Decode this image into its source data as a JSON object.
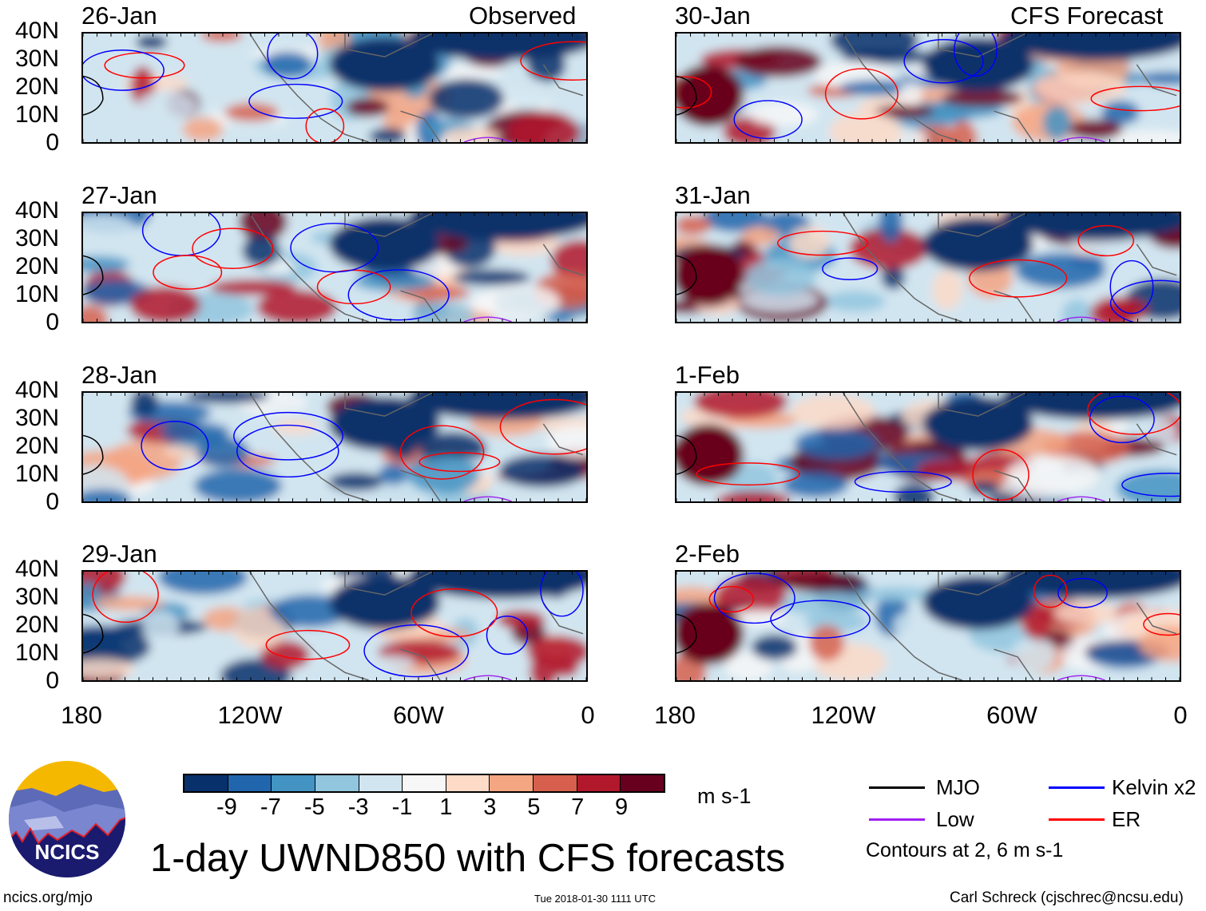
{
  "header": {
    "observed_label": "Observed",
    "forecast_label": "CFS Forecast"
  },
  "panels": {
    "observed": [
      {
        "date": "26-Jan"
      },
      {
        "date": "27-Jan"
      },
      {
        "date": "28-Jan"
      },
      {
        "date": "29-Jan"
      }
    ],
    "forecast": [
      {
        "date": "30-Jan"
      },
      {
        "date": "31-Jan"
      },
      {
        "date": "1-Feb"
      },
      {
        "date": "2-Feb"
      }
    ]
  },
  "y_ticks": [
    "40N",
    "30N",
    "20N",
    "10N",
    "0"
  ],
  "x_ticks": [
    "180",
    "120W",
    "60W",
    "0"
  ],
  "colorbar": {
    "labels": [
      "-9",
      "-7",
      "-5",
      "-3",
      "-1",
      "1",
      "3",
      "5",
      "7",
      "9"
    ],
    "colors": [
      "#08306b",
      "#2166ac",
      "#4393c3",
      "#92c5de",
      "#d1e5f0",
      "#f7f7f7",
      "#fddbc7",
      "#f4a582",
      "#d6604d",
      "#b2182b",
      "#67001f"
    ],
    "units": "m s-1"
  },
  "legend": {
    "items": [
      {
        "label": "MJO",
        "color": "#000000"
      },
      {
        "label": "Kelvin x2",
        "color": "#0000ff"
      },
      {
        "label": "Low",
        "color": "#a020f0"
      },
      {
        "label": "ER",
        "color": "#ff0000"
      }
    ],
    "contours_note": "Contours at 2, 6 m s-1"
  },
  "title": "1-day UWND850 with CFS forecasts",
  "logo": {
    "text": "NCICS"
  },
  "footer": {
    "url": "ncics.org/mjo",
    "timestamp": "Tue 2018-01-30 1111 UTC",
    "credit": "Carl Schreck (cjschrec@ncsu.edu)"
  },
  "chart_data": {
    "type": "heatmap",
    "title": "1-day UWND850 with CFS forecasts",
    "variable": "850-hPa zonal wind anomaly",
    "units": "m s-1",
    "x_ticks": [
      "180",
      "120W",
      "60W",
      "0"
    ],
    "y_ticks": [
      "40N",
      "30N",
      "20N",
      "10N",
      "0"
    ],
    "color_levels": [
      -9,
      -7,
      -5,
      -3,
      -1,
      1,
      3,
      5,
      7,
      9
    ],
    "contour_levels": [
      2,
      6
    ],
    "panel_dates": [
      "26-Jan",
      "27-Jan",
      "28-Jan",
      "29-Jan",
      "30-Jan",
      "31-Jan",
      "1-Feb",
      "2-Feb"
    ]
  }
}
